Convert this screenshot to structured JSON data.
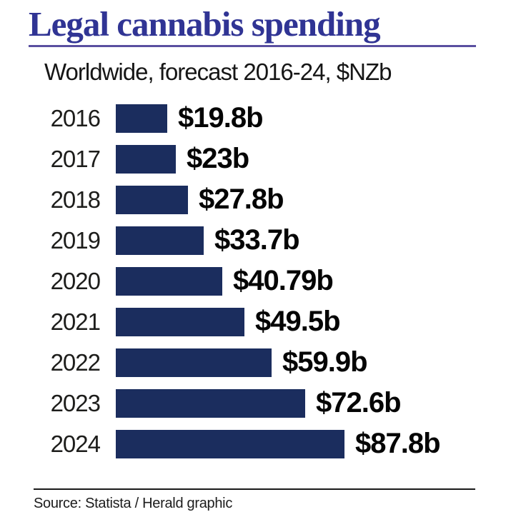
{
  "header": {
    "title": "Legal cannabis spending",
    "subtitle": "Worldwide, forecast 2016-24, $NZb"
  },
  "footer": {
    "source": "Source: Statista / Herald graphic"
  },
  "colors": {
    "title_text": "#303494",
    "title_rule": "#5a4fa0",
    "bar": "#1b2d5e",
    "label_text": "#1d1d1b",
    "value_text": "#050505",
    "footer_rule": "#1a1a1a"
  },
  "chart_data": {
    "type": "bar",
    "orientation": "horizontal",
    "title": "Legal cannabis spending",
    "subtitle": "Worldwide, forecast 2016-24, $NZb",
    "unit": "$NZb",
    "categories": [
      "2016",
      "2017",
      "2018",
      "2019",
      "2020",
      "2021",
      "2022",
      "2023",
      "2024"
    ],
    "values": [
      19.8,
      23,
      27.8,
      33.7,
      40.79,
      49.5,
      59.9,
      72.6,
      87.8
    ],
    "value_labels": [
      "$19.8b",
      "$23b",
      "$27.8b",
      "$33.7b",
      "$40.79b",
      "$49.5b",
      "$59.9b",
      "$72.6b",
      "$87.8b"
    ],
    "xlim": [
      0,
      90
    ],
    "grid": false,
    "legend": "none",
    "bar_color": "#1b2d5e"
  }
}
